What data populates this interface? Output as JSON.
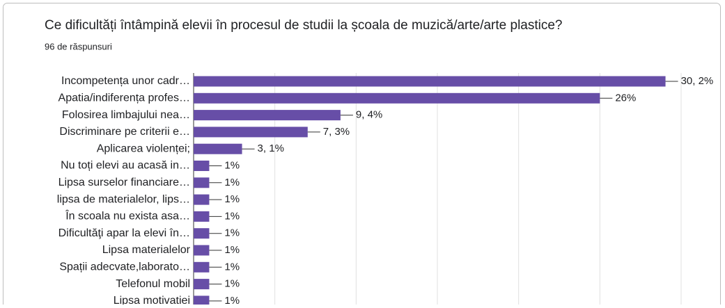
{
  "chart_data": {
    "type": "hbar",
    "title": "Ce dificultăți întâmpină elevii în procesul de studii la școala de muzică/arte/arte plastice?",
    "subtitle": "96 de răspunsuri",
    "categories": [
      "Incompetența unor cadr…",
      "Apatia/indiferența profes…",
      "Folosirea limbajului nea…",
      "Discriminare pe criterii e…",
      "Aplicarea violenței;",
      "Nu toți elevi au acasă in…",
      "Lipsa surselor financiare…",
      "lipsa de materialelor, lips…",
      "În scoala nu exista asa…",
      "Dificultăţi apar la elevi în…",
      "Lipsa materialelor",
      "Spații adecvate,laborato…",
      "Telefonul mobil",
      "Lipsa motivației"
    ],
    "values": [
      30.2,
      26,
      9.4,
      7.3,
      3.1,
      1,
      1,
      1,
      1,
      1,
      1,
      1,
      1,
      1
    ],
    "value_labels": [
      "30, 2%",
      "26%",
      "9, 4%",
      "7, 3%",
      "3, 1%",
      "1%",
      "1%",
      "1%",
      "1%",
      "1%",
      "1%",
      "1%",
      "1%",
      "1%"
    ],
    "color": "#674ea7",
    "xlim": [
      0,
      31.2
    ],
    "xticks": [
      0,
      5.2,
      10.4,
      15.6,
      20.8,
      26,
      31.2
    ],
    "grid": true
  }
}
